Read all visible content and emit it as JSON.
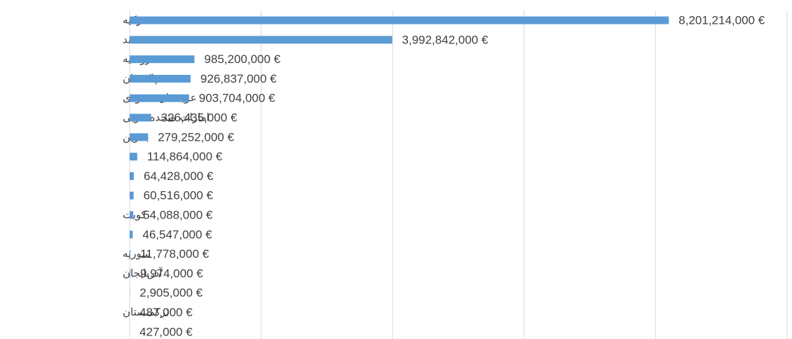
{
  "chart_data": {
    "type": "bar",
    "orientation": "horizontal",
    "categories": [
      "ترکیه",
      "هند",
      "روسیه",
      "پاکستان",
      "عربستان سعودی",
      "امارات متحده عربی",
      "بحرین",
      null,
      null,
      null,
      "کویت",
      null,
      "سوریه",
      "آذربایجان",
      null,
      "ترکمنستان",
      null
    ],
    "values": [
      8201214000,
      3992842000,
      985200000,
      926837000,
      903704000,
      326435000,
      279252000,
      114864000,
      64428000,
      60516000,
      54088000,
      46547000,
      11778000,
      9974000,
      2905000,
      487000,
      427000
    ],
    "value_labels": [
      "8,201,214,000 €",
      "3,992,842,000 €",
      "985,200,000 €",
      "926,837,000 €",
      "903,704,000 €",
      "326,435,000 €",
      "279,252,000 €",
      "114,864,000 €",
      "64,428,000 €",
      "60,516,000 €",
      "54,088,000 €",
      "46,547,000 €",
      "11,778,000 €",
      "9,974,000 €",
      "2,905,000 €",
      "487,000 €",
      "427,000 €"
    ],
    "color": "#5b9bd5",
    "xlim": [
      0,
      10000000000
    ],
    "xticks": [
      0,
      2000000000,
      4000000000,
      6000000000,
      8000000000,
      10000000000
    ],
    "grid": true
  }
}
